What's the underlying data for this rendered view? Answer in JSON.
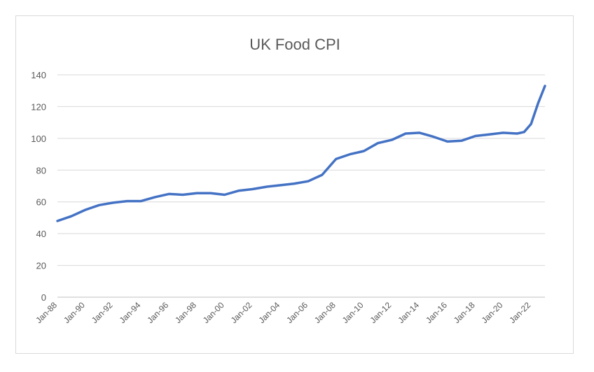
{
  "chart_data": {
    "type": "line",
    "title": "UK Food CPI",
    "xlabel": "",
    "ylabel": "",
    "ylim": [
      0,
      140
    ],
    "yticks": [
      0,
      20,
      40,
      60,
      80,
      100,
      120,
      140
    ],
    "x_tick_labels": [
      "Jan-88",
      "Jan-90",
      "Jan-92",
      "Jan-94",
      "Jan-96",
      "Jan-98",
      "Jan-00",
      "Jan-02",
      "Jan-04",
      "Jan-06",
      "Jan-08",
      "Jan-10",
      "Jan-12",
      "Jan-14",
      "Jan-16",
      "Jan-18",
      "Jan-20",
      "Jan-22"
    ],
    "grid": true,
    "legend": "none",
    "series_color": "#4472c4",
    "series": [
      {
        "x": [
          "Jan-88",
          "Jan-89",
          "Jan-90",
          "Jan-91",
          "Jan-92",
          "Jan-93",
          "Jan-94",
          "Jan-95",
          "Jan-96",
          "Jan-97",
          "Jan-98",
          "Jan-99",
          "Jan-00",
          "Jan-01",
          "Jan-02",
          "Jan-03",
          "Jan-04",
          "Jan-05",
          "Jan-06",
          "Jan-07",
          "Jan-08",
          "Jan-09",
          "Jan-10",
          "Jan-11",
          "Jan-12",
          "Jan-13",
          "Jan-14",
          "Jan-15",
          "Jan-16",
          "Jan-17",
          "Jan-18",
          "Jan-19",
          "Jan-20",
          "Jan-21",
          "Jul-21",
          "Jan-22",
          "Jul-22",
          "Jan-23"
        ],
        "values": [
          48,
          51,
          55,
          58,
          59.5,
          60.5,
          60.5,
          63,
          65,
          64.5,
          65.5,
          65.5,
          64.5,
          67,
          68,
          69.5,
          70.5,
          71.5,
          73,
          77,
          87,
          90,
          92,
          97,
          99,
          103,
          103.5,
          101,
          98,
          98.5,
          101.5,
          102.5,
          103.5,
          103,
          104,
          109,
          122,
          133
        ]
      }
    ]
  }
}
